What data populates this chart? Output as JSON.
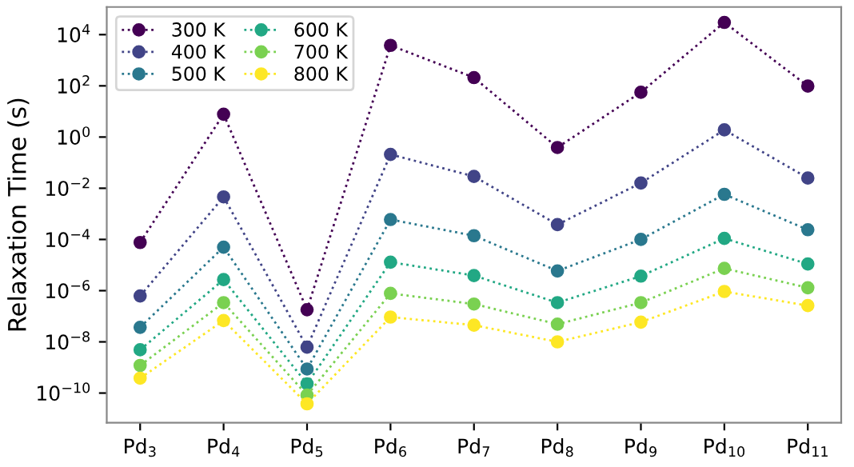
{
  "chart_data": {
    "type": "line",
    "ylabel": "Relaxation Time (s)",
    "log": "y",
    "legend": "top left",
    "marker": "circle",
    "line_style": "dotted",
    "categories": [
      "Pd$_{3}$",
      "Pd$_{4}$",
      "Pd$_{5}$",
      "Pd$_{6}$",
      "Pd$_{7}$",
      "Pd$_{8}$",
      "Pd$_{9}$",
      "Pd$_{10}$",
      "Pd$_{11}$"
    ],
    "ylim": [
      7e-12,
      120000.0
    ],
    "yticks": [
      {
        "value": 1e-10,
        "label": "10$^{−10}$"
      },
      {
        "value": 1e-08,
        "label": "10$^{−8}$"
      },
      {
        "value": 1e-06,
        "label": "10$^{−6}$"
      },
      {
        "value": 0.0001,
        "label": "10$^{−4}$"
      },
      {
        "value": 0.01,
        "label": "10$^{−2}$"
      },
      {
        "value": 1,
        "label": "10$^{0}$"
      },
      {
        "value": 100,
        "label": "10$^{2}$"
      },
      {
        "value": 10000,
        "label": "10$^{4}$"
      }
    ],
    "series": [
      {
        "name": "300 K",
        "color": "#440154",
        "values": [
          7.6e-05,
          7.8,
          1.8e-07,
          3800,
          210,
          0.39,
          56,
          30000,
          98
        ]
      },
      {
        "name": "400 K",
        "color": "#414487",
        "values": [
          6.2e-07,
          0.0046,
          6.2e-09,
          0.21,
          0.029,
          0.00038,
          0.016,
          1.9,
          0.025
        ]
      },
      {
        "name": "500 K",
        "color": "#2a788e",
        "values": [
          3.7e-08,
          5e-05,
          8.7e-10,
          0.0006,
          0.00014,
          5.9e-06,
          0.0001,
          0.0058,
          0.00024
        ]
      },
      {
        "name": "600 K",
        "color": "#22a884",
        "values": [
          4.9e-09,
          2.7e-06,
          2.3e-10,
          1.3e-05,
          3.9e-06,
          3.4e-07,
          3.7e-06,
          0.00011,
          1.1e-05
        ]
      },
      {
        "name": "700 K",
        "color": "#7ad151",
        "values": [
          1.2e-09,
          3.4e-07,
          8.3e-11,
          7.8e-07,
          3e-07,
          4.9e-08,
          3.4e-07,
          7.4e-06,
          1.3e-06
        ]
      },
      {
        "name": "800 K",
        "color": "#fde725",
        "values": [
          3.8e-10,
          6.8e-08,
          3.8e-11,
          9.3e-08,
          4.5e-08,
          1e-08,
          5.9e-08,
          9.3e-07,
          2.6e-07
        ]
      }
    ]
  }
}
